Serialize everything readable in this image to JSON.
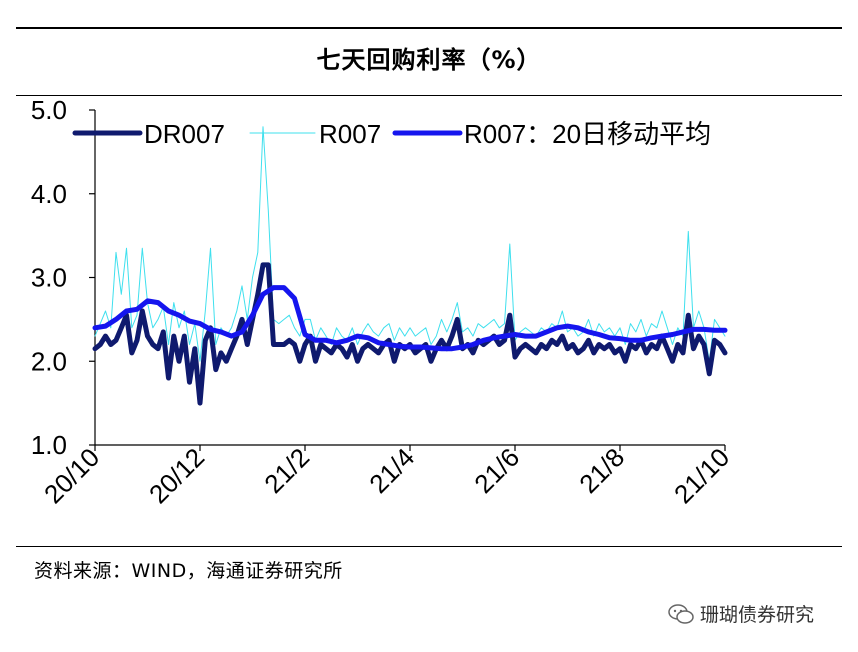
{
  "header": {
    "title": "七天回购利率（%）"
  },
  "footer": {
    "source": "资料来源：WIND，海通证券研究所",
    "watermark": "珊瑚债券研究"
  },
  "chart_data": {
    "type": "line",
    "title": "七天回购利率（%）",
    "xlabel": "",
    "ylabel": "",
    "ylim": [
      1.0,
      5.0
    ],
    "yticks": [
      "5.0",
      "4.0",
      "3.0",
      "2.0",
      "1.0"
    ],
    "xticks": [
      "20/10",
      "20/12",
      "21/2",
      "21/4",
      "21/6",
      "21/8",
      "21/10"
    ],
    "legend_position": "top",
    "colors": {
      "DR007": "#0f1a6e",
      "R007": "#3fe0ee",
      "R007_MA20": "#1515ee"
    },
    "series": [
      {
        "name": "DR007",
        "x": [
          0,
          0.1,
          0.2,
          0.3,
          0.4,
          0.5,
          0.6,
          0.7,
          0.8,
          0.9,
          1.0,
          1.1,
          1.2,
          1.3,
          1.4,
          1.5,
          1.6,
          1.7,
          1.8,
          1.9,
          2.0,
          2.1,
          2.2,
          2.3,
          2.4,
          2.5,
          2.6,
          2.7,
          2.8,
          2.9,
          3.0,
          3.1,
          3.2,
          3.3,
          3.4,
          3.5,
          3.6,
          3.7,
          3.8,
          3.9,
          4.0,
          4.1,
          4.2,
          4.3,
          4.4,
          4.5,
          4.6,
          4.7,
          4.8,
          4.9,
          5.0,
          5.1,
          5.2,
          5.3,
          5.4,
          5.5,
          5.6,
          5.7,
          5.8,
          5.9,
          6.0,
          6.1,
          6.2,
          6.3,
          6.4,
          6.5,
          6.6,
          6.7,
          6.8,
          6.9,
          7.0,
          7.1,
          7.2,
          7.3,
          7.4,
          7.5,
          7.6,
          7.7,
          7.8,
          7.9,
          8.0,
          8.1,
          8.2,
          8.3,
          8.4,
          8.5,
          8.6,
          8.7,
          8.8,
          8.9,
          9.0,
          9.1,
          9.2,
          9.3,
          9.4,
          9.5,
          9.6,
          9.7,
          9.8,
          9.9,
          10.0,
          10.1,
          10.2,
          10.3,
          10.4,
          10.5,
          10.6,
          10.7,
          10.8,
          10.9,
          11.0,
          11.1,
          11.2,
          11.3,
          11.4,
          11.5,
          11.6,
          11.7,
          11.8,
          11.9,
          12.0
        ],
        "values": [
          2.15,
          2.2,
          2.3,
          2.2,
          2.25,
          2.4,
          2.55,
          2.1,
          2.25,
          2.6,
          2.3,
          2.2,
          2.15,
          2.35,
          1.8,
          2.3,
          2.0,
          2.3,
          1.75,
          2.15,
          1.5,
          2.25,
          2.4,
          1.9,
          2.1,
          2.0,
          2.15,
          2.3,
          2.5,
          2.2,
          2.5,
          2.8,
          3.15,
          3.15,
          2.2,
          2.2,
          2.2,
          2.25,
          2.2,
          2.0,
          2.2,
          2.3,
          2.0,
          2.2,
          2.15,
          2.1,
          2.2,
          2.15,
          2.05,
          2.2,
          2.0,
          2.15,
          2.2,
          2.15,
          2.1,
          2.2,
          2.25,
          2.0,
          2.2,
          2.15,
          2.2,
          2.1,
          2.15,
          2.2,
          2.0,
          2.15,
          2.25,
          2.15,
          2.3,
          2.5,
          2.15,
          2.2,
          2.1,
          2.25,
          2.2,
          2.25,
          2.3,
          2.2,
          2.25,
          2.55,
          2.05,
          2.15,
          2.2,
          2.15,
          2.1,
          2.2,
          2.15,
          2.25,
          2.2,
          2.3,
          2.15,
          2.2,
          2.1,
          2.15,
          2.25,
          2.1,
          2.2,
          2.15,
          2.2,
          2.1,
          2.15,
          2.0,
          2.2,
          2.15,
          2.25,
          2.1,
          2.2,
          2.15,
          2.3,
          2.15,
          2.0,
          2.2,
          2.1,
          2.55,
          2.15,
          2.3,
          2.2,
          1.85,
          2.25,
          2.2,
          2.1
        ],
        "line_width": "thick"
      },
      {
        "name": "R007",
        "x": [
          0,
          0.1,
          0.2,
          0.3,
          0.4,
          0.5,
          0.6,
          0.7,
          0.8,
          0.9,
          1.0,
          1.1,
          1.2,
          1.3,
          1.4,
          1.5,
          1.6,
          1.7,
          1.8,
          1.9,
          2.0,
          2.1,
          2.2,
          2.3,
          2.4,
          2.5,
          2.6,
          2.7,
          2.8,
          2.9,
          3.0,
          3.1,
          3.2,
          3.3,
          3.4,
          3.5,
          3.6,
          3.7,
          3.8,
          3.9,
          4.0,
          4.1,
          4.2,
          4.3,
          4.4,
          4.5,
          4.6,
          4.7,
          4.8,
          4.9,
          5.0,
          5.1,
          5.2,
          5.3,
          5.4,
          5.5,
          5.6,
          5.7,
          5.8,
          5.9,
          6.0,
          6.1,
          6.2,
          6.3,
          6.4,
          6.5,
          6.6,
          6.7,
          6.8,
          6.9,
          7.0,
          7.1,
          7.2,
          7.3,
          7.4,
          7.5,
          7.6,
          7.7,
          7.8,
          7.9,
          8.0,
          8.1,
          8.2,
          8.3,
          8.4,
          8.5,
          8.6,
          8.7,
          8.8,
          8.9,
          9.0,
          9.1,
          9.2,
          9.3,
          9.4,
          9.5,
          9.6,
          9.7,
          9.8,
          9.9,
          10.0,
          10.1,
          10.2,
          10.3,
          10.4,
          10.5,
          10.6,
          10.7,
          10.8,
          10.9,
          11.0,
          11.1,
          11.2,
          11.3,
          11.4,
          11.5,
          11.6,
          11.7,
          11.8,
          11.9,
          12.0
        ],
        "values": [
          2.3,
          2.45,
          2.6,
          2.4,
          3.3,
          2.8,
          3.35,
          2.4,
          2.55,
          3.35,
          2.7,
          2.4,
          2.5,
          2.65,
          2.2,
          2.7,
          2.4,
          2.6,
          2.2,
          2.45,
          2.0,
          2.6,
          3.35,
          2.2,
          2.4,
          2.3,
          2.4,
          2.6,
          2.9,
          2.5,
          3.0,
          3.3,
          4.8,
          3.8,
          2.5,
          2.45,
          2.5,
          2.55,
          2.4,
          2.3,
          2.5,
          2.5,
          2.25,
          2.4,
          2.3,
          2.2,
          2.4,
          2.3,
          2.25,
          2.4,
          2.2,
          2.35,
          2.45,
          2.35,
          2.3,
          2.4,
          2.45,
          2.25,
          2.4,
          2.3,
          2.4,
          2.3,
          2.35,
          2.4,
          2.2,
          2.3,
          2.5,
          2.35,
          2.5,
          2.7,
          2.35,
          2.4,
          2.3,
          2.45,
          2.4,
          2.45,
          2.5,
          2.4,
          2.45,
          3.4,
          2.25,
          2.35,
          2.4,
          2.35,
          2.3,
          2.4,
          2.35,
          2.45,
          2.4,
          2.6,
          2.35,
          2.4,
          2.3,
          2.35,
          2.5,
          2.3,
          2.45,
          2.35,
          2.4,
          2.3,
          2.4,
          2.2,
          2.45,
          2.35,
          2.5,
          2.3,
          2.45,
          2.4,
          2.6,
          2.4,
          2.2,
          2.4,
          2.3,
          3.55,
          2.4,
          2.6,
          2.4,
          2.0,
          2.5,
          2.4,
          2.3
        ],
        "line_width": "thin"
      },
      {
        "name": "R007：20日移动平均",
        "x": [
          0,
          0.2,
          0.4,
          0.6,
          0.8,
          1.0,
          1.2,
          1.4,
          1.6,
          1.8,
          2.0,
          2.2,
          2.4,
          2.6,
          2.8,
          3.0,
          3.2,
          3.4,
          3.6,
          3.8,
          4.0,
          4.2,
          4.4,
          4.6,
          4.8,
          5.0,
          5.2,
          5.4,
          5.6,
          5.8,
          6.0,
          6.2,
          6.4,
          6.6,
          6.8,
          7.0,
          7.2,
          7.4,
          7.6,
          7.8,
          8.0,
          8.2,
          8.4,
          8.6,
          8.8,
          9.0,
          9.2,
          9.4,
          9.6,
          9.8,
          10.0,
          10.2,
          10.4,
          10.6,
          10.8,
          11.0,
          11.2,
          11.4,
          11.6,
          11.8,
          12.0
        ],
        "values": [
          2.4,
          2.42,
          2.5,
          2.6,
          2.62,
          2.72,
          2.7,
          2.6,
          2.55,
          2.48,
          2.45,
          2.38,
          2.35,
          2.3,
          2.35,
          2.55,
          2.8,
          2.88,
          2.88,
          2.75,
          2.32,
          2.25,
          2.25,
          2.22,
          2.25,
          2.3,
          2.28,
          2.22,
          2.2,
          2.18,
          2.17,
          2.17,
          2.16,
          2.15,
          2.15,
          2.17,
          2.2,
          2.25,
          2.28,
          2.3,
          2.32,
          2.3,
          2.3,
          2.35,
          2.4,
          2.42,
          2.4,
          2.35,
          2.32,
          2.28,
          2.27,
          2.25,
          2.25,
          2.28,
          2.3,
          2.32,
          2.35,
          2.38,
          2.38,
          2.37,
          2.37
        ],
        "line_width": "thick"
      }
    ]
  }
}
